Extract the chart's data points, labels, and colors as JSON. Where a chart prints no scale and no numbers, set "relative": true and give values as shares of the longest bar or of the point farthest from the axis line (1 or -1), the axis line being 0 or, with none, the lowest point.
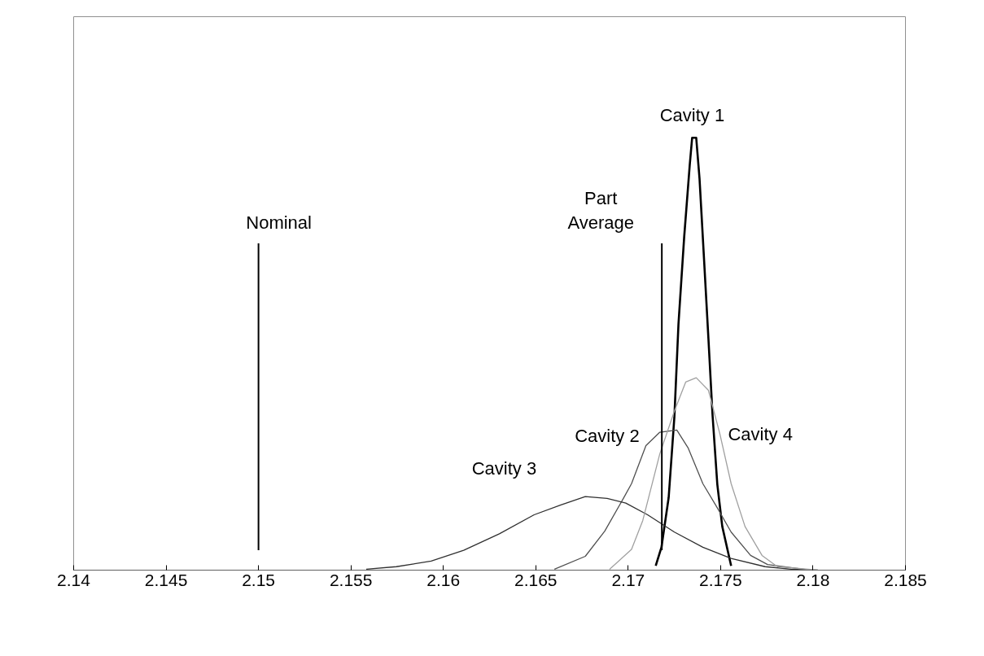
{
  "chart_data": {
    "type": "line",
    "relative": true,
    "xlim": [
      2.14,
      2.185
    ],
    "xticks": [
      2.14,
      2.145,
      2.15,
      2.155,
      2.16,
      2.165,
      2.17,
      2.175,
      2.18,
      2.185
    ],
    "tick_labels": "x",
    "marker": "none",
    "line_style": "solid",
    "series": [
      {
        "name": "Cavity 1",
        "color": "#000000",
        "x": [
          2.17149,
          2.1718,
          2.17219,
          2.1725,
          2.17272,
          2.17303,
          2.17333,
          2.17346,
          2.17368,
          2.17386,
          2.17408,
          2.17434,
          2.17456,
          2.17482,
          2.17509,
          2.17557
        ],
        "values": [
          0.01,
          0.053,
          0.168,
          0.355,
          0.569,
          0.771,
          0.937,
          1.0,
          1.0,
          0.905,
          0.737,
          0.536,
          0.361,
          0.199,
          0.101,
          0.01
        ]
      },
      {
        "name": "Cavity 2",
        "color": "#505050",
        "x": [
          2.16601,
          2.16768,
          2.16873,
          2.16974,
          2.17018,
          2.17096,
          2.17171,
          2.17263,
          2.17325,
          2.17404,
          2.17478,
          2.17557,
          2.17662,
          2.17754,
          2.17982
        ],
        "values": [
          0.002,
          0.032,
          0.09,
          0.166,
          0.2,
          0.288,
          0.319,
          0.324,
          0.282,
          0.2,
          0.147,
          0.088,
          0.034,
          0.013,
          0.0
        ]
      },
      {
        "name": "Cavity 3",
        "color": "#303030",
        "x": [
          2.15583,
          2.15746,
          2.15934,
          2.1611,
          2.16303,
          2.16491,
          2.16636,
          2.16768,
          2.16886,
          2.16987,
          2.17105,
          2.1725,
          2.17404,
          2.17557,
          2.17741,
          2.17882,
          2.18026
        ],
        "values": [
          0.002,
          0.008,
          0.021,
          0.046,
          0.084,
          0.128,
          0.151,
          0.17,
          0.166,
          0.155,
          0.128,
          0.088,
          0.053,
          0.027,
          0.008,
          0.002,
          0.0
        ]
      },
      {
        "name": "Cavity 4",
        "color": "#a0a0a0",
        "x": [
          2.16899,
          2.17018,
          2.17079,
          2.17171,
          2.1725,
          2.17311,
          2.17368,
          2.17434,
          2.17496,
          2.17557,
          2.17632,
          2.17724,
          2.17807,
          2.18026
        ],
        "values": [
          0.002,
          0.048,
          0.115,
          0.269,
          0.368,
          0.435,
          0.445,
          0.416,
          0.315,
          0.2,
          0.101,
          0.034,
          0.008,
          0.0
        ]
      }
    ],
    "ref_lines": [
      {
        "axis": "x",
        "value": 2.15,
        "label": "Nominal",
        "color": "#000000"
      },
      {
        "axis": "x",
        "value": 2.17182,
        "label": "Part Average",
        "color": "#000000"
      }
    ]
  }
}
